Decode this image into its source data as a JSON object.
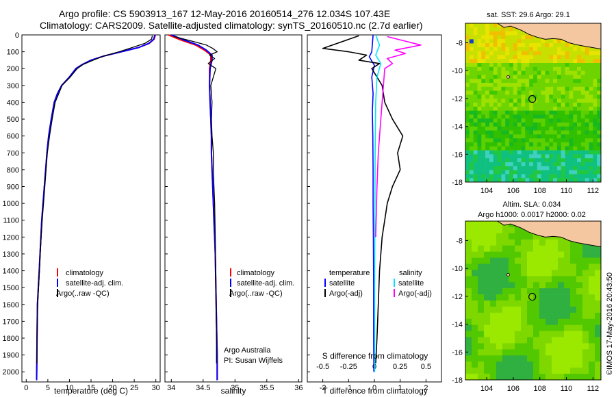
{
  "header": {
    "line1": "Argo profile: CS 5903913_167 12-May-2016 20160514_276 12.034S 107.43E",
    "line2": "Climatology: CARS2009. Satellite-adjusted climatology: synTS_20160510.nc (2.7d earlier)"
  },
  "colors": {
    "climatology": "#ff0000",
    "satellite_temperature": "#0000ff",
    "argo": "#000000",
    "satellite_salinity": "#00e5ff",
    "argo_salinity_diff": "#ff00ff",
    "land": "#f5c7a0"
  },
  "depth_axis": {
    "ticks": [
      0,
      100,
      200,
      300,
      400,
      500,
      600,
      700,
      800,
      900,
      1000,
      1100,
      1200,
      1300,
      1400,
      1500,
      1600,
      1700,
      1800,
      1900,
      2000
    ],
    "range": [
      0,
      2060
    ]
  },
  "panels": {
    "temperature": {
      "xlabel": "temperature (deg C)",
      "xticks": [
        0,
        5,
        10,
        15,
        20,
        25,
        30
      ],
      "legend": [
        "climatology",
        "satellite-adj. clim.",
        "Argo(..raw -QC)"
      ]
    },
    "salinity": {
      "xlabel": "salinity",
      "xticks": [
        "34",
        "34.5",
        "35",
        "35.5",
        "36"
      ],
      "legend": [
        "climatology",
        "satellite-adj. clim.",
        "Argo(..raw -QC)"
      ],
      "note1": "Argo Australia",
      "note2": "PI: Susan Wijffels"
    },
    "difference": {
      "top_label": "S difference from climatology",
      "top_ticks": [
        "-0.5",
        "-0.25",
        "0",
        "0.25",
        "0.5"
      ],
      "xlabel": "T difference from climatology",
      "xticks": [
        "-2",
        "-1",
        "0",
        "1",
        "2"
      ],
      "legend_temp_title": "temperature",
      "legend_sal_title": "salinity",
      "legend_items": [
        "satellite",
        "Argo(-adj)",
        "satellite",
        "Argo(-adj)"
      ]
    }
  },
  "maps": {
    "sst_title": "sat. SST: 29.6 Argo: 29.1",
    "sla_title1": "Altim. SLA: 0.034",
    "sla_title2": "Argo h1000: 0.0017 h2000: 0.02",
    "yticks": [
      "-8",
      "-10",
      "-12",
      "-14",
      "-16",
      "-18"
    ],
    "xticks": [
      "104",
      "106",
      "108",
      "110",
      "112"
    ],
    "lon_range": [
      102.4,
      112.6
    ],
    "lat_range": [
      -18,
      -6.6
    ],
    "float_position": {
      "lon": 107.43,
      "lat": -12.034
    }
  },
  "footer_stamp": "©IMOS 17-May-2016 20:43:50",
  "chart_data": [
    {
      "type": "line",
      "title": "",
      "xlabel": "temperature (deg C)",
      "ylabel": "",
      "xlim": [
        -1,
        31
      ],
      "ylim": [
        2060,
        0
      ],
      "series": [
        {
          "name": "climatology",
          "x": [
            29.9,
            29.6,
            28.5,
            26,
            22,
            18,
            15,
            13,
            11.5,
            10,
            8.2,
            7.2,
            6.5,
            5.8,
            5.2,
            4.8,
            4.5,
            4.2,
            3.9,
            3.6,
            3.4,
            3.2,
            3.0,
            2.8,
            2.6,
            2.5,
            2.45,
            2.4
          ],
          "y": [
            0,
            25,
            50,
            75,
            100,
            125,
            150,
            175,
            200,
            250,
            300,
            350,
            400,
            500,
            600,
            700,
            800,
            900,
            1000,
            1100,
            1200,
            1300,
            1400,
            1500,
            1600,
            1800,
            1950,
            2050
          ]
        },
        {
          "name": "satellite-adj. clim.",
          "x": [
            29.8,
            29.5,
            28.4,
            26,
            22,
            18,
            15,
            13,
            11.5,
            10,
            8.2,
            7.2,
            6.5,
            5.8,
            5.2,
            4.8,
            4.5,
            4.2,
            3.9,
            3.6,
            3.4,
            3.2,
            3.0,
            2.8,
            2.6,
            2.5,
            2.45,
            2.4
          ],
          "y": [
            0,
            25,
            50,
            75,
            100,
            125,
            150,
            175,
            200,
            250,
            300,
            350,
            400,
            500,
            600,
            700,
            800,
            900,
            1000,
            1100,
            1200,
            1300,
            1400,
            1500,
            1600,
            1800,
            1950,
            2050
          ]
        },
        {
          "name": "Argo(..raw -QC)",
          "x": [
            29.2,
            29.0,
            27.5,
            24.5,
            21.5,
            18,
            15.5,
            13.2,
            11.8,
            10.2,
            8.3,
            7.5,
            6.7,
            6.0,
            5.4,
            4.9,
            4.6,
            4.3,
            4.0,
            3.7,
            3.45,
            3.25,
            3.05,
            2.85,
            2.65,
            2.5,
            2.45
          ],
          "y": [
            5,
            25,
            50,
            75,
            100,
            125,
            150,
            175,
            200,
            250,
            300,
            350,
            400,
            500,
            600,
            700,
            800,
            900,
            1000,
            1100,
            1200,
            1300,
            1400,
            1500,
            1600,
            1800,
            1950
          ]
        }
      ]
    },
    {
      "type": "line",
      "title": "",
      "xlabel": "salinity",
      "ylabel": "",
      "xlim": [
        33.9,
        36.05
      ],
      "ylim": [
        2060,
        0
      ],
      "series": [
        {
          "name": "climatology",
          "x": [
            33.95,
            34.15,
            34.38,
            34.52,
            34.62,
            34.62,
            34.6,
            34.6,
            34.61,
            34.62,
            34.63,
            34.63,
            34.64,
            34.65,
            34.66,
            34.67,
            34.68,
            34.69,
            34.7,
            34.71,
            34.72,
            34.72,
            34.72
          ],
          "y": [
            0,
            30,
            60,
            90,
            120,
            150,
            200,
            300,
            400,
            500,
            600,
            700,
            800,
            900,
            1000,
            1100,
            1200,
            1300,
            1500,
            1700,
            1900,
            2000,
            2050
          ]
        },
        {
          "name": "satellite-adj. clim.",
          "x": [
            34.0,
            34.2,
            34.42,
            34.55,
            34.64,
            34.64,
            34.61,
            34.6,
            34.61,
            34.62,
            34.63,
            34.63,
            34.64,
            34.65,
            34.66,
            34.67,
            34.68,
            34.69,
            34.7,
            34.71,
            34.72,
            34.72,
            34.72
          ],
          "y": [
            0,
            30,
            60,
            90,
            120,
            150,
            200,
            300,
            400,
            500,
            600,
            700,
            800,
            900,
            1000,
            1100,
            1200,
            1300,
            1500,
            1700,
            1900,
            2000,
            2050
          ]
        },
        {
          "name": "Argo(..raw -QC)",
          "x": [
            34.05,
            34.35,
            34.55,
            34.65,
            34.72,
            34.6,
            34.68,
            34.58,
            34.7,
            34.62,
            34.64,
            34.63,
            34.64,
            34.66,
            34.66,
            34.67,
            34.68,
            34.69,
            34.7,
            34.71,
            34.71
          ],
          "y": [
            10,
            40,
            60,
            80,
            100,
            120,
            140,
            170,
            200,
            300,
            400,
            500,
            600,
            700,
            800,
            900,
            1000,
            1200,
            1500,
            1800,
            1950
          ]
        }
      ]
    },
    {
      "type": "line",
      "title": "",
      "xlabel": "T difference from climatology",
      "ylabel": "",
      "xlim": [
        -2.6,
        2.6
      ],
      "ylim": [
        2060,
        0
      ],
      "series": [
        {
          "name": "satellite",
          "x": [
            -0.05,
            -0.1,
            -0.2,
            0,
            -0.1,
            -0.05,
            -0.08,
            -0.06,
            -0.05,
            -0.05,
            -0.04,
            -0.03,
            -0.03,
            -0.02
          ],
          "y": [
            0,
            100,
            130,
            180,
            250,
            350,
            450,
            600,
            800,
            1000,
            1200,
            1500,
            1800,
            2000
          ]
        },
        {
          "name": "Argo(-adj)",
          "x": [
            -0.6,
            -2.0,
            -1.0,
            -0.3,
            -0.6,
            0.2,
            -0.1,
            0.3,
            0.4,
            0.7,
            1.1,
            0.9,
            1.0,
            0.7,
            0.5,
            0.4,
            0.3,
            0.2,
            0.15,
            0.1,
            0.05
          ],
          "y": [
            5,
            80,
            100,
            120,
            150,
            170,
            200,
            300,
            400,
            500,
            600,
            700,
            800,
            900,
            1000,
            1100,
            1200,
            1400,
            1600,
            1800,
            1950
          ]
        },
        {
          "name": "satellite",
          "x": [
            0.05,
            0.2,
            0.05,
            0.25,
            0.1,
            0.05,
            0.03,
            0.02,
            0.01,
            0.01
          ],
          "y": [
            0,
            60,
            120,
            170,
            250,
            400,
            700,
            1000,
            1500,
            2000
          ]
        },
        {
          "name": "Argo(-adj)",
          "x": [
            0.5,
            1.8,
            0.8,
            1.2,
            0.5,
            0.7,
            0.4,
            0.35,
            0.3,
            0.25,
            0.15,
            0.1,
            0.05
          ],
          "y": [
            10,
            60,
            90,
            110,
            140,
            170,
            200,
            300,
            400,
            500,
            700,
            900,
            1200
          ]
        }
      ]
    }
  ]
}
